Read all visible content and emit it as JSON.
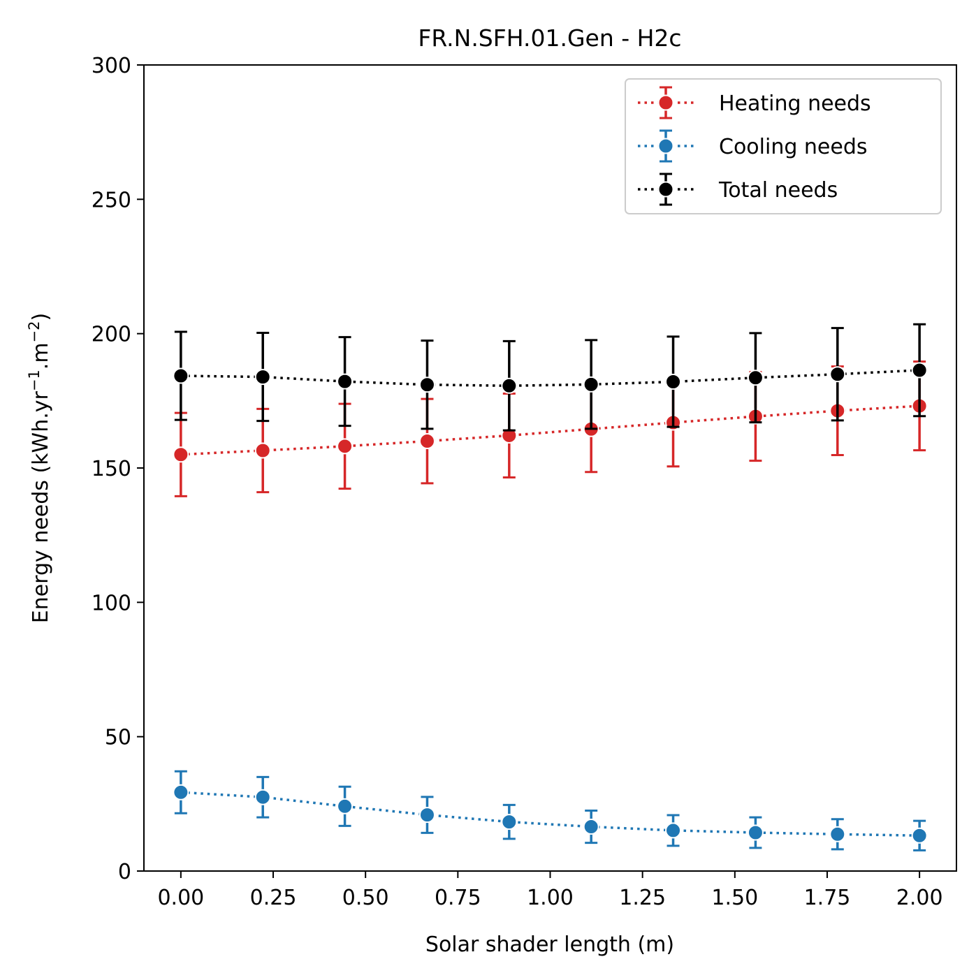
{
  "chart_data": {
    "type": "line",
    "title": "FR.N.SFH.01.Gen - H2c",
    "xlabel": "Solar shader length (m)",
    "ylabel_main": "Energy needs (kWh.yr",
    "ylabel_sup1": "−1",
    "ylabel_mid": ".m",
    "ylabel_sup2": "−2",
    "ylabel_end": ")",
    "xlim": [
      -0.1,
      2.1
    ],
    "ylim": [
      0,
      300
    ],
    "xticks": [
      0.0,
      0.25,
      0.5,
      0.75,
      1.0,
      1.25,
      1.5,
      1.75,
      2.0
    ],
    "xtick_labels": [
      "0.00",
      "0.25",
      "0.50",
      "0.75",
      "1.00",
      "1.25",
      "1.50",
      "1.75",
      "2.00"
    ],
    "yticks": [
      0,
      50,
      100,
      150,
      200,
      250,
      300
    ],
    "ytick_labels": [
      "0",
      "50",
      "100",
      "150",
      "200",
      "250",
      "300"
    ],
    "grid": false,
    "legend_position": "top-right",
    "x": [
      0.0,
      0.222,
      0.444,
      0.667,
      0.889,
      1.111,
      1.333,
      1.556,
      1.778,
      2.0
    ],
    "series": [
      {
        "name": "Heating needs",
        "color": "#d62728",
        "values": [
          155.0,
          156.5,
          158.1,
          160.0,
          162.1,
          164.5,
          166.9,
          169.2,
          171.3,
          173.1
        ],
        "err": [
          15.5,
          15.5,
          15.8,
          15.7,
          15.6,
          16.0,
          16.3,
          16.5,
          16.5,
          16.5
        ]
      },
      {
        "name": "Cooling needs",
        "color": "#1f77b4",
        "values": [
          29.3,
          27.5,
          24.1,
          20.9,
          18.3,
          16.5,
          15.1,
          14.3,
          13.7,
          13.2
        ],
        "err": [
          7.8,
          7.5,
          7.3,
          6.7,
          6.3,
          6.0,
          5.7,
          5.7,
          5.6,
          5.5
        ]
      },
      {
        "name": "Total needs",
        "color": "#000000",
        "values": [
          184.3,
          183.9,
          182.2,
          181.0,
          180.6,
          181.1,
          182.1,
          183.6,
          184.9,
          186.4
        ],
        "err": [
          16.4,
          16.4,
          16.5,
          16.4,
          16.6,
          16.5,
          16.8,
          16.6,
          17.2,
          17.1
        ]
      }
    ]
  }
}
